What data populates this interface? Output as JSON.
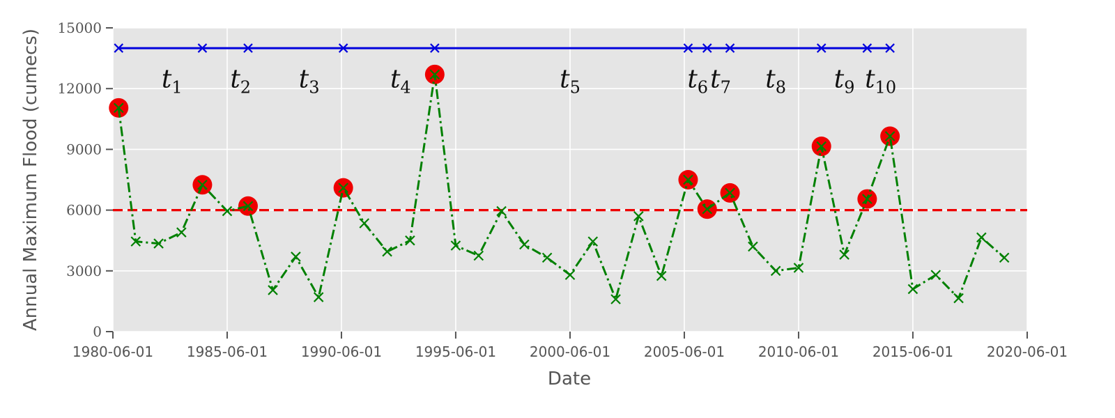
{
  "chart_data": {
    "type": "line",
    "xlabel": "Date",
    "ylabel": "Annual Maximum Flood (cumecs)",
    "xlim": [
      "1980-06-01",
      "2020-06-01"
    ],
    "ylim": [
      0,
      15000
    ],
    "xticks": [
      "1980-06-01",
      "1985-06-01",
      "1990-06-01",
      "1995-06-01",
      "2000-06-01",
      "2005-06-01",
      "2010-06-01",
      "2015-06-01",
      "2020-06-01"
    ],
    "yticks": [
      0,
      3000,
      6000,
      9000,
      12000,
      15000
    ],
    "grid": true,
    "threshold": 6000,
    "series": [
      {
        "color": "#008000",
        "style": "dash-dot with x markers",
        "points": [
          {
            "x": "1980-09-01",
            "y": 11050
          },
          {
            "x": "1981-06-01",
            "y": 4450
          },
          {
            "x": "1982-06-01",
            "y": 4350
          },
          {
            "x": "1983-06-01",
            "y": 4900
          },
          {
            "x": "1984-05-01",
            "y": 7250
          },
          {
            "x": "1985-06-01",
            "y": 5950
          },
          {
            "x": "1986-05-01",
            "y": 6200
          },
          {
            "x": "1987-06-01",
            "y": 2050
          },
          {
            "x": "1988-06-01",
            "y": 3700
          },
          {
            "x": "1989-06-01",
            "y": 1700
          },
          {
            "x": "1990-07-01",
            "y": 7100
          },
          {
            "x": "1991-06-01",
            "y": 5350
          },
          {
            "x": "1992-06-01",
            "y": 3950
          },
          {
            "x": "1993-06-01",
            "y": 4500
          },
          {
            "x": "1994-07-01",
            "y": 12700
          },
          {
            "x": "1995-06-01",
            "y": 4250
          },
          {
            "x": "1996-06-01",
            "y": 3750
          },
          {
            "x": "1997-06-01",
            "y": 5950
          },
          {
            "x": "1998-06-01",
            "y": 4300
          },
          {
            "x": "1999-06-01",
            "y": 3650
          },
          {
            "x": "2000-06-01",
            "y": 2800
          },
          {
            "x": "2001-06-01",
            "y": 4450
          },
          {
            "x": "2002-06-01",
            "y": 1600
          },
          {
            "x": "2003-06-01",
            "y": 5700
          },
          {
            "x": "2004-06-01",
            "y": 2750
          },
          {
            "x": "2005-08-01",
            "y": 7500
          },
          {
            "x": "2006-06-01",
            "y": 6050
          },
          {
            "x": "2007-06-01",
            "y": 6850
          },
          {
            "x": "2008-06-01",
            "y": 4200
          },
          {
            "x": "2009-06-01",
            "y": 3000
          },
          {
            "x": "2010-06-01",
            "y": 3150
          },
          {
            "x": "2011-06-01",
            "y": 9150
          },
          {
            "x": "2012-06-01",
            "y": 3800
          },
          {
            "x": "2013-06-01",
            "y": 6550
          },
          {
            "x": "2014-06-01",
            "y": 9650
          },
          {
            "x": "2015-06-01",
            "y": 2100
          },
          {
            "x": "2016-06-01",
            "y": 2800
          },
          {
            "x": "2017-06-01",
            "y": 1650
          },
          {
            "x": "2018-06-01",
            "y": 4650
          },
          {
            "x": "2019-06-01",
            "y": 3650
          }
        ]
      }
    ],
    "exceedances": [
      {
        "x": "1980-09-01",
        "y": 11050
      },
      {
        "x": "1984-05-01",
        "y": 7250
      },
      {
        "x": "1986-05-01",
        "y": 6200
      },
      {
        "x": "1990-07-01",
        "y": 7100
      },
      {
        "x": "1994-07-01",
        "y": 12700
      },
      {
        "x": "2005-08-01",
        "y": 7500
      },
      {
        "x": "2006-06-01",
        "y": 6050
      },
      {
        "x": "2007-06-01",
        "y": 6850
      },
      {
        "x": "2011-06-01",
        "y": 9150
      },
      {
        "x": "2013-06-01",
        "y": 6550
      },
      {
        "x": "2014-06-01",
        "y": 9650
      }
    ],
    "interval_line": {
      "y": 14000,
      "color": "#0000dd",
      "markers": [
        "1980-09-01",
        "1984-05-01",
        "1986-05-01",
        "1990-07-01",
        "1994-07-01",
        "2005-08-01",
        "2006-06-01",
        "2007-06-01",
        "2011-06-01",
        "2013-06-01",
        "2014-06-01"
      ]
    },
    "interval_labels": [
      {
        "base": "t",
        "sub": "1",
        "x": "1983-01-01",
        "y": 12400
      },
      {
        "base": "t",
        "sub": "2",
        "x": "1986-01-01",
        "y": 12400
      },
      {
        "base": "t",
        "sub": "3",
        "x": "1989-01-01",
        "y": 12400
      },
      {
        "base": "t",
        "sub": "4",
        "x": "1993-01-01",
        "y": 12400
      },
      {
        "base": "t",
        "sub": "5",
        "x": "2000-06-01",
        "y": 12400
      },
      {
        "base": "t",
        "sub": "6",
        "x": "2006-01-01",
        "y": 12400
      },
      {
        "base": "t",
        "sub": "7",
        "x": "2007-01-01",
        "y": 12400
      },
      {
        "base": "t",
        "sub": "8",
        "x": "2009-06-01",
        "y": 12400
      },
      {
        "base": "t",
        "sub": "9",
        "x": "2012-06-01",
        "y": 12400
      },
      {
        "base": "t",
        "sub": "10",
        "x": "2014-01-01",
        "y": 12400
      }
    ]
  }
}
